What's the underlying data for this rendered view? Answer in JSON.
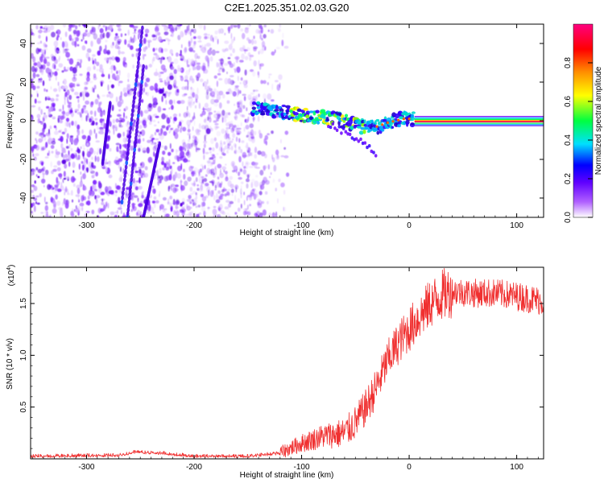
{
  "chart_data": [
    {
      "type": "heatmap",
      "title": "C2E1.2025.351.02.03.G20",
      "xlabel": "Height of straight line (km)",
      "ylabel": "Frequency (Hz)",
      "xlim": [
        -352,
        125
      ],
      "ylim": [
        -50,
        50
      ],
      "xticks": [
        -300,
        -200,
        -100,
        0,
        100
      ],
      "xtick_labels": [
        "-300",
        "-200",
        "-100",
        "0",
        "100"
      ],
      "yticks": [
        -40,
        -20,
        0,
        20,
        40
      ],
      "ytick_labels": [
        "-40",
        "-20",
        "0",
        "20",
        "40"
      ],
      "colorbar": {
        "label": "Normalized spectral amplitude",
        "range": [
          0,
          1
        ],
        "ticks": [
          0,
          0.2,
          0.4,
          0.6,
          0.8
        ],
        "tick_labels": [
          "0.0",
          "0.2",
          "0.4",
          "0.6",
          "0.8"
        ],
        "colors": [
          "#ffffff",
          "#8a00ff",
          "#0000ff",
          "#00e0ff",
          "#00ff00",
          "#ffff00",
          "#ff8000",
          "#ff0000",
          "#ff0080"
        ]
      },
      "features": {
        "noise_region_x": [
          -352,
          -120
        ],
        "signal_track": [
          {
            "x": -145,
            "f": 6
          },
          {
            "x": -120,
            "f": 5
          },
          {
            "x": -100,
            "f": 3
          },
          {
            "x": -80,
            "f": 2
          },
          {
            "x": -60,
            "f": 0
          },
          {
            "x": -45,
            "f": -3
          },
          {
            "x": -35,
            "f": -4
          },
          {
            "x": -20,
            "f": -1
          },
          {
            "x": -5,
            "f": 1
          },
          {
            "x": 5,
            "f": 1
          },
          {
            "x": 60,
            "f": 0
          },
          {
            "x": 125,
            "f": 0
          }
        ],
        "secondary_branch": [
          {
            "x": -75,
            "f": -2
          },
          {
            "x": -55,
            "f": -7
          },
          {
            "x": -40,
            "f": -12
          },
          {
            "x": -30,
            "f": -18
          }
        ],
        "diagonal_streaks": [
          {
            "x0": -267,
            "f0": -42,
            "x1": -248,
            "f1": 48
          },
          {
            "x0": -262,
            "f0": -50,
            "x1": -247,
            "f1": 28
          },
          {
            "x0": -247,
            "f0": -50,
            "x1": -232,
            "f1": -12
          },
          {
            "x0": -285,
            "f0": -22,
            "x1": -278,
            "f1": 9
          }
        ]
      }
    },
    {
      "type": "line",
      "xlabel": "Height of straight line (km)",
      "ylabel": "SNR (10 * v/v)",
      "multiplier": "(x10",
      "multiplier_exp": "4",
      "multiplier_close": ")",
      "xlim": [
        -352,
        125
      ],
      "ylim": [
        0,
        1.85
      ],
      "xticks": [
        -300,
        -200,
        -100,
        0,
        100
      ],
      "xtick_labels": [
        "-300",
        "-200",
        "-100",
        "0",
        "100"
      ],
      "yticks": [
        0.5,
        1.0,
        1.5
      ],
      "ytick_labels": [
        "0.5",
        "1.0",
        "1.5"
      ],
      "color": "#f03030",
      "trend": [
        {
          "x": -352,
          "y": 0.03
        },
        {
          "x": -270,
          "y": 0.04
        },
        {
          "x": -255,
          "y": 0.07
        },
        {
          "x": -230,
          "y": 0.06
        },
        {
          "x": -200,
          "y": 0.03
        },
        {
          "x": -150,
          "y": 0.03
        },
        {
          "x": -120,
          "y": 0.06
        },
        {
          "x": -100,
          "y": 0.15
        },
        {
          "x": -80,
          "y": 0.22
        },
        {
          "x": -60,
          "y": 0.25
        },
        {
          "x": -50,
          "y": 0.35
        },
        {
          "x": -40,
          "y": 0.5
        },
        {
          "x": -30,
          "y": 0.7
        },
        {
          "x": -20,
          "y": 0.95
        },
        {
          "x": -10,
          "y": 1.12
        },
        {
          "x": 0,
          "y": 1.25
        },
        {
          "x": 10,
          "y": 1.38
        },
        {
          "x": 20,
          "y": 1.5
        },
        {
          "x": 30,
          "y": 1.58
        },
        {
          "x": 40,
          "y": 1.62
        },
        {
          "x": 60,
          "y": 1.6
        },
        {
          "x": 80,
          "y": 1.6
        },
        {
          "x": 100,
          "y": 1.57
        },
        {
          "x": 125,
          "y": 1.52
        }
      ]
    }
  ]
}
